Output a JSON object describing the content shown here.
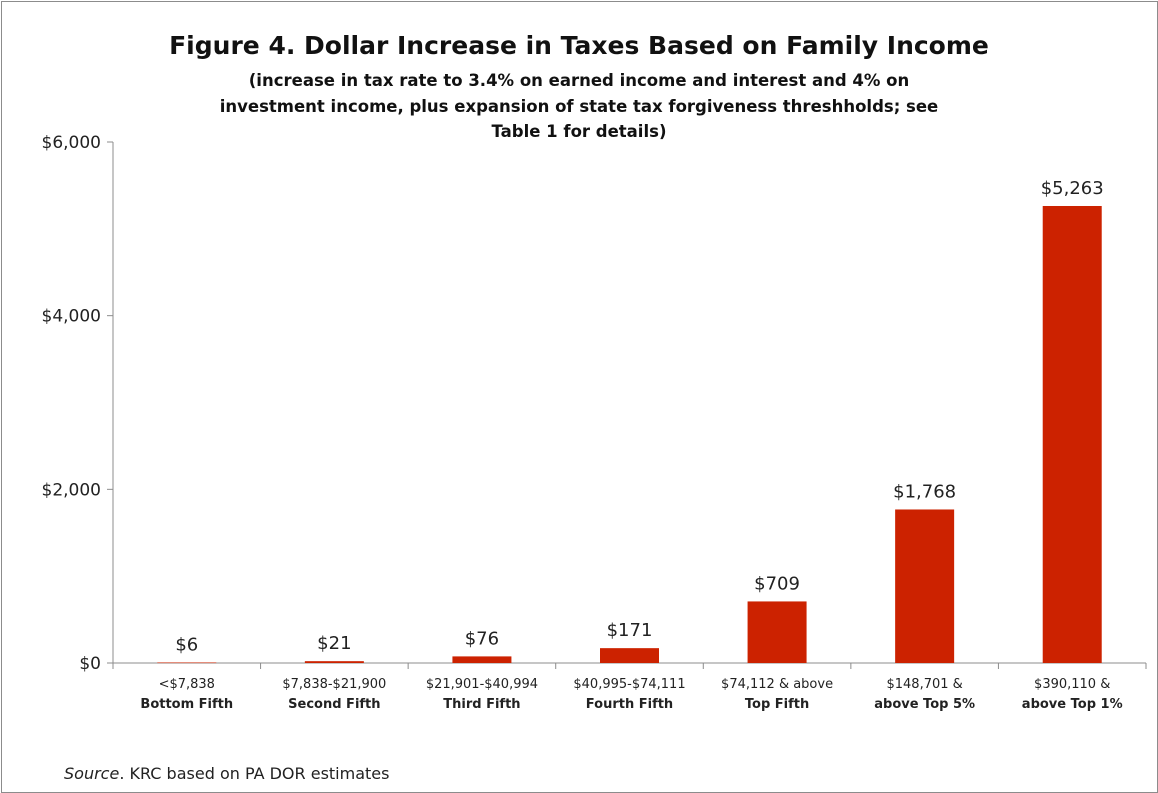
{
  "chart_data": {
    "type": "bar",
    "title": "Figure 4. Dollar Increase in Taxes Based on Family Income",
    "subtitle": "(increase in  tax rate to  3.4% on earned income and interest and 4% on investment income, plus expansion of state tax forgiveness threshholds; see Table 1 for  details)",
    "categories": [
      [
        "<$7,838",
        "Bottom Fifth"
      ],
      [
        "$7,838-$21,900",
        "Second Fifth"
      ],
      [
        "$21,901-$40,994",
        "Third Fifth"
      ],
      [
        "$40,995-$74,111",
        "Fourth Fifth"
      ],
      [
        "$74,112 & above",
        "Top Fifth"
      ],
      [
        "$148,701 &",
        "above Top 5%"
      ],
      [
        "$390,110 &",
        "above Top 1%"
      ]
    ],
    "values": [
      6,
      21,
      76,
      171,
      709,
      1768,
      5263
    ],
    "data_labels": [
      "$6",
      "$21",
      "$76",
      "$171",
      "$709",
      "$1,768",
      "$5,263"
    ],
    "ylim": [
      0,
      6000
    ],
    "yticks": [
      0,
      2000,
      4000,
      6000
    ],
    "ytick_labels": [
      "$0",
      "$2,000",
      "$4,000",
      "$6,000"
    ],
    "xlabel": "",
    "ylabel": "",
    "bar_color": "#cc2200",
    "grid": false,
    "legend": "none"
  },
  "source": {
    "label": "Source",
    "text": ". KRC based on  PA DOR estimates"
  }
}
